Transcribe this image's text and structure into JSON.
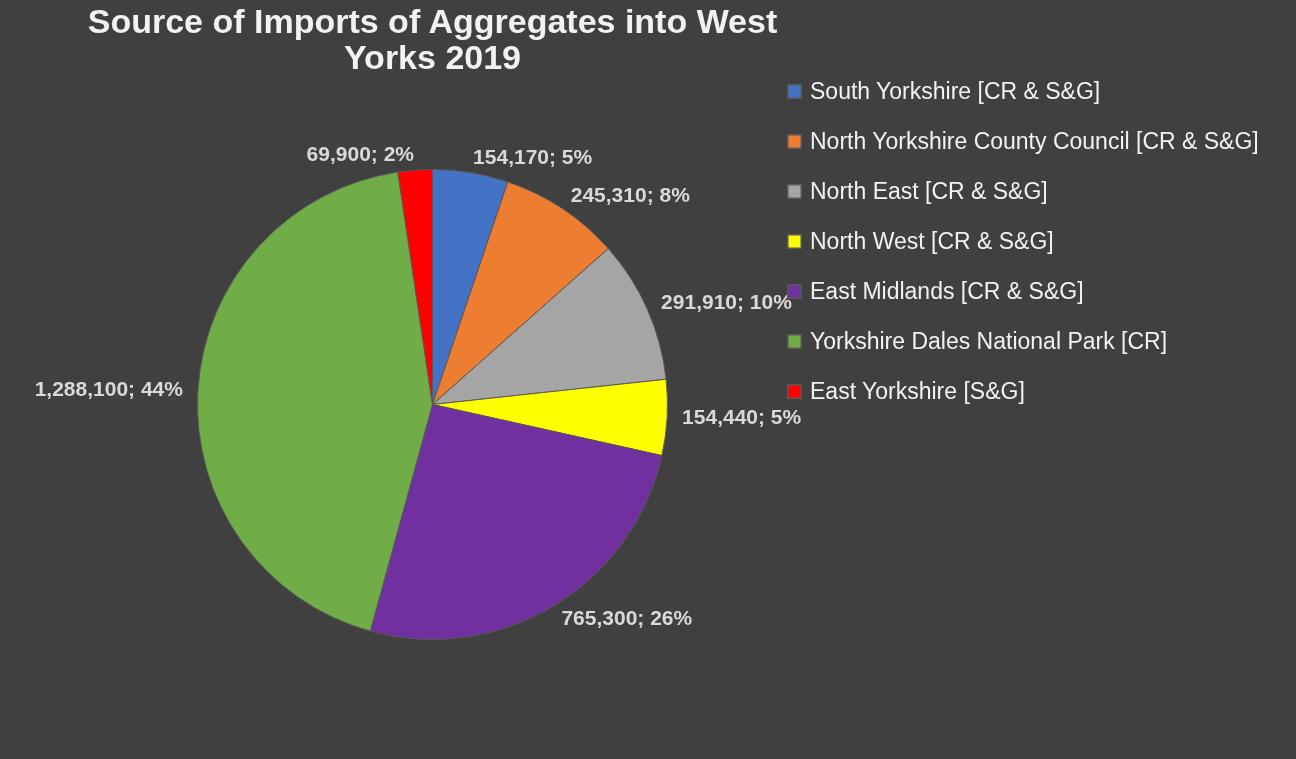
{
  "chart_data": {
    "type": "pie",
    "title": "Source of Imports of Aggregates into West Yorks 2019",
    "categories": [
      "South Yorkshire [CR & S&G]",
      "North Yorkshire County Council  [CR & S&G]",
      "North East [CR & S&G]",
      "North West [CR & S&G]",
      "East Midlands [CR & S&G]",
      "Yorkshire Dales National Park [CR]",
      "East Yorkshire [S&G]"
    ],
    "values": [
      154170,
      245310,
      291910,
      154440,
      765300,
      1288100,
      69900
    ],
    "colors": [
      "#4472c4",
      "#ed7d31",
      "#a5a5a5",
      "#ffff00",
      "#7030a0",
      "#70ad47",
      "#ff0000"
    ],
    "value_labels": [
      "154,170; 5%",
      "245,310; 8%",
      "291,910; 10%",
      "154,440; 5%",
      "765,300; 26%",
      "1,288,100; 44%",
      "69,900; 2%"
    ],
    "legend": "right"
  }
}
